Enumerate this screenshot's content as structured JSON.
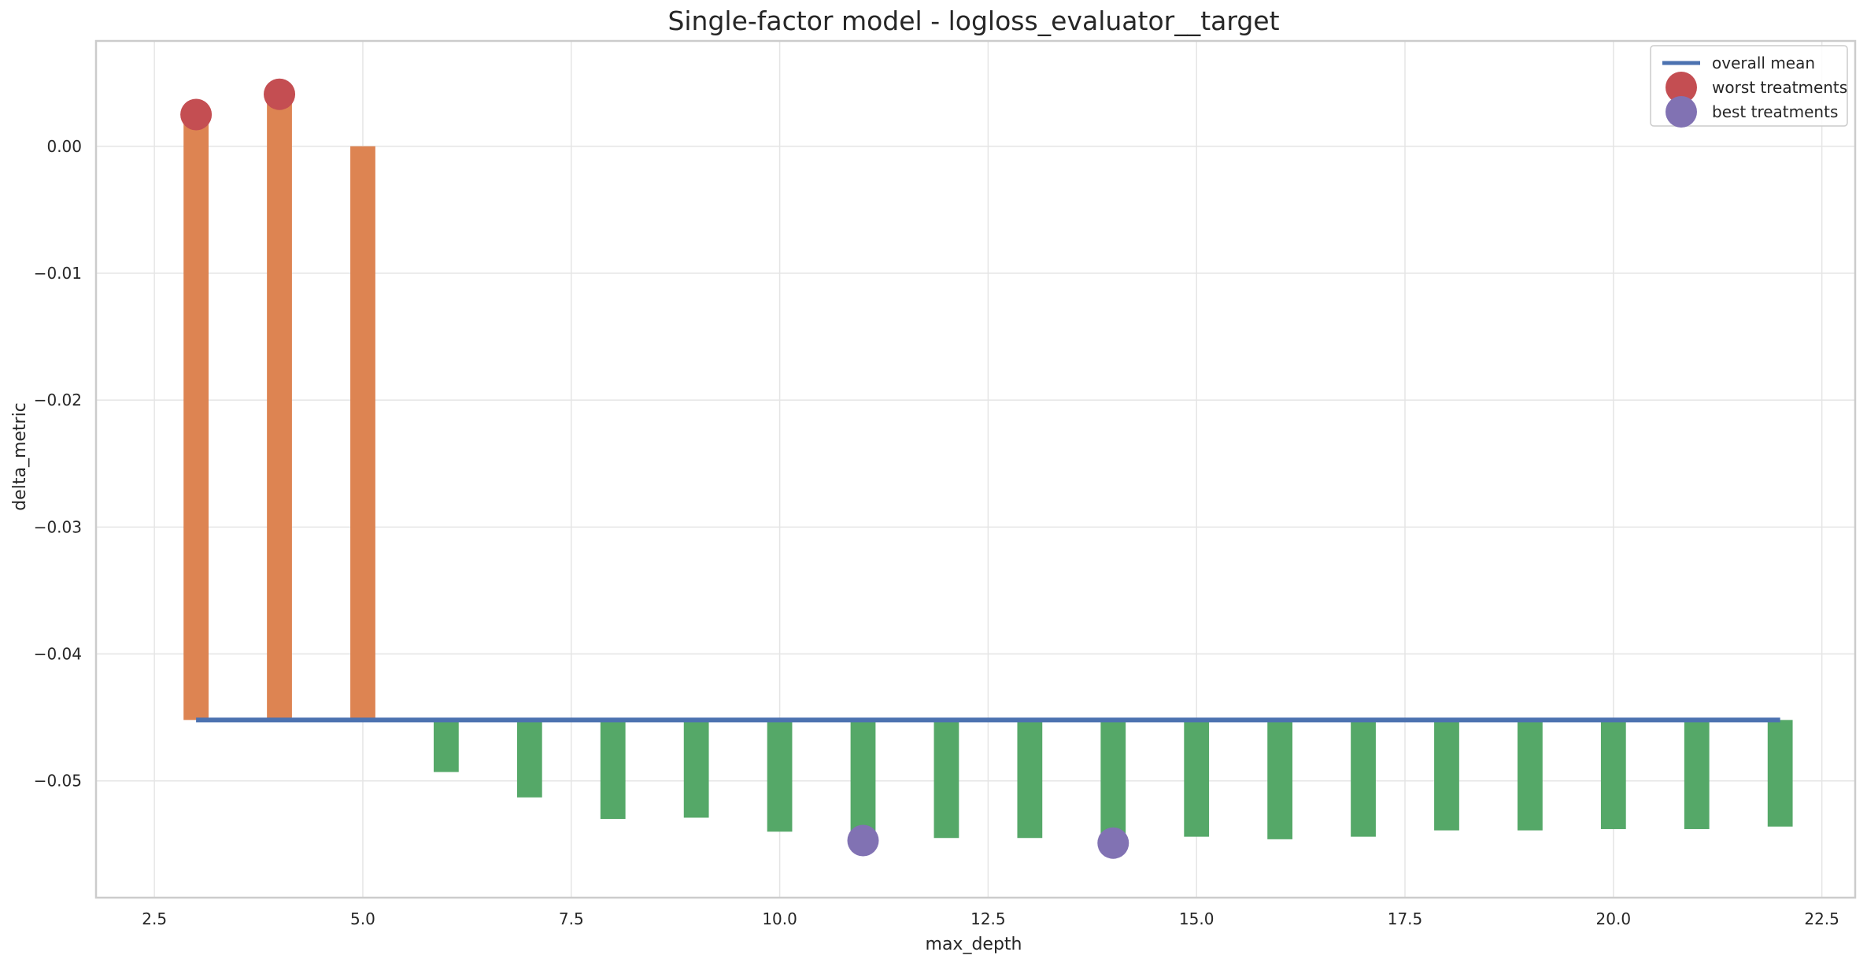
{
  "chart_data": {
    "type": "bar",
    "title": "Single-factor model - logloss_evaluator__target",
    "xlabel": "max_depth",
    "ylabel": "delta_metric",
    "xlim": [
      1.8,
      22.9
    ],
    "ylim": [
      -0.0592,
      0.0083
    ],
    "xticks": [
      2.5,
      5.0,
      7.5,
      10.0,
      12.5,
      15.0,
      17.5,
      20.0,
      22.5
    ],
    "xtick_labels": [
      "2.5",
      "5.0",
      "7.5",
      "10.0",
      "12.5",
      "15.0",
      "17.5",
      "20.0",
      "22.5"
    ],
    "yticks": [
      0.0,
      -0.01,
      -0.02,
      -0.03,
      -0.04,
      -0.05
    ],
    "ytick_labels": [
      "0.00",
      "−0.01",
      "−0.02",
      "−0.03",
      "−0.04",
      "−0.05"
    ],
    "grid": true,
    "legend_position": "top-right",
    "baseline": -0.0452,
    "bars": [
      {
        "x": 3,
        "value": 0.0023,
        "color": "#dd8452"
      },
      {
        "x": 4,
        "value": 0.0039,
        "color": "#dd8452"
      },
      {
        "x": 5,
        "value": 0.0,
        "color": "#dd8452"
      },
      {
        "x": 6,
        "value": -0.0493,
        "color": "#55a868"
      },
      {
        "x": 7,
        "value": -0.0513,
        "color": "#55a868"
      },
      {
        "x": 8,
        "value": -0.053,
        "color": "#55a868"
      },
      {
        "x": 9,
        "value": -0.0529,
        "color": "#55a868"
      },
      {
        "x": 10,
        "value": -0.054,
        "color": "#55a868"
      },
      {
        "x": 11,
        "value": -0.0546,
        "color": "#55a868"
      },
      {
        "x": 12,
        "value": -0.0545,
        "color": "#55a868"
      },
      {
        "x": 13,
        "value": -0.0545,
        "color": "#55a868"
      },
      {
        "x": 14,
        "value": -0.0548,
        "color": "#55a868"
      },
      {
        "x": 15,
        "value": -0.0544,
        "color": "#55a868"
      },
      {
        "x": 16,
        "value": -0.0546,
        "color": "#55a868"
      },
      {
        "x": 17,
        "value": -0.0544,
        "color": "#55a868"
      },
      {
        "x": 18,
        "value": -0.0539,
        "color": "#55a868"
      },
      {
        "x": 19,
        "value": -0.0539,
        "color": "#55a868"
      },
      {
        "x": 20,
        "value": -0.0538,
        "color": "#55a868"
      },
      {
        "x": 21,
        "value": -0.0538,
        "color": "#55a868"
      },
      {
        "x": 22,
        "value": -0.0536,
        "color": "#55a868"
      }
    ],
    "overall_mean": {
      "name": "overall mean",
      "value": -0.0452,
      "x_range": [
        3,
        22
      ],
      "color": "#4c72b0"
    },
    "worst_treatments": {
      "name": "worst treatments",
      "color": "#c44e52",
      "points": [
        {
          "x": 3,
          "y": 0.0025
        },
        {
          "x": 4,
          "y": 0.0041
        }
      ]
    },
    "best_treatments": {
      "name": "best treatments",
      "color": "#8172b3",
      "points": [
        {
          "x": 11,
          "y": -0.0547
        },
        {
          "x": 14,
          "y": -0.0549
        }
      ]
    }
  }
}
